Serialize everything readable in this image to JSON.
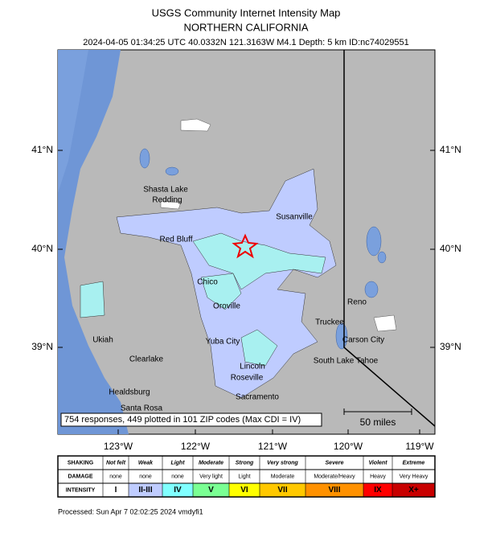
{
  "header": {
    "title": "USGS Community Internet Intensity Map",
    "subtitle": "NORTHERN CALIFORNIA",
    "event": "2024-04-05 01:34:25 UTC 40.0332N 121.3163W M4.1 Depth: 5 km ID:nc74029551"
  },
  "map": {
    "lat_labels": [
      "41°N",
      "40°N",
      "39°N"
    ],
    "lon_labels": [
      "123°W",
      "122°W",
      "121°W",
      "120°W",
      "119°W"
    ],
    "places": [
      "Shasta Lake",
      "Redding",
      "Red Bluff",
      "Susanville",
      "Chico",
      "Oroville",
      "Reno",
      "Truckee",
      "Ukiah",
      "Yuba City",
      "Carson City",
      "Clearlake",
      "South Lake Tahoe",
      "Lincoln",
      "Roseville",
      "Healdsburg",
      "Sacramento",
      "Santa Rosa"
    ],
    "note": "754 responses, 449 plotted in 101 ZIP codes (Max CDI = IV)",
    "scale_bar": "50 miles"
  },
  "legend": {
    "rows": [
      {
        "label": "SHAKING",
        "cells": [
          "Not felt",
          "Weak",
          "Light",
          "Moderate",
          "Strong",
          "Very strong",
          "Severe",
          "Violent",
          "Extreme"
        ]
      },
      {
        "label": "DAMAGE",
        "cells": [
          "none",
          "none",
          "none",
          "Very light",
          "Light",
          "Moderate",
          "Moderate/Heavy",
          "Heavy",
          "Very Heavy"
        ]
      },
      {
        "label": "INTENSITY",
        "cells": [
          "I",
          "II-III",
          "IV",
          "V",
          "VI",
          "VII",
          "VIII",
          "IX",
          "X+"
        ]
      }
    ],
    "intensity_colors": [
      "#ffffff",
      "#bfccff",
      "#80ffff",
      "#7aff93",
      "#ffff00",
      "#ffc800",
      "#ff9100",
      "#ff0000",
      "#c80000"
    ]
  },
  "footer": "Processed: Sun Apr  7 02:02:25 2024 vmdyfi1"
}
